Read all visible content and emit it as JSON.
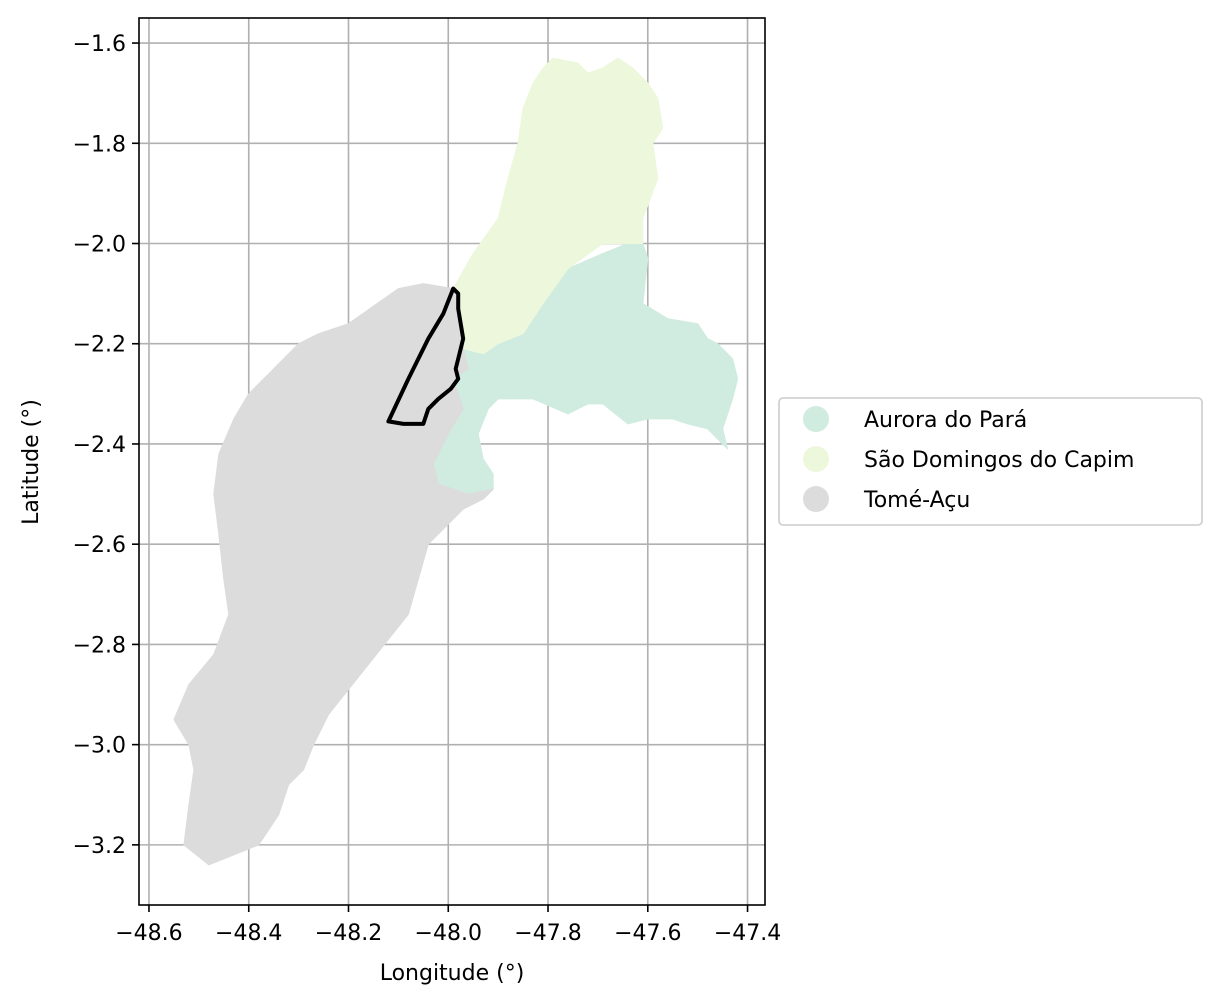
{
  "chart_data": {
    "type": "map",
    "xlabel": "Longitude (°)",
    "ylabel": "Latitude (°)",
    "xlim": [
      -48.62,
      -47.365
    ],
    "ylim": [
      -3.32,
      -1.55
    ],
    "xticks": [
      -48.6,
      -48.4,
      -48.2,
      -48.0,
      -47.8,
      -47.6,
      -47.4
    ],
    "xtick_labels": [
      "−48.6",
      "−48.4",
      "−48.2",
      "−48.0",
      "−47.8",
      "−47.6",
      "−47.4"
    ],
    "yticks": [
      -1.6,
      -1.8,
      -2.0,
      -2.2,
      -2.4,
      -2.6,
      -2.8,
      -3.0,
      -3.2
    ],
    "ytick_labels": [
      "−1.6",
      "−1.8",
      "−2.0",
      "−2.2",
      "−2.4",
      "−2.6",
      "−2.8",
      "−3.0",
      "−3.2"
    ],
    "grid": true,
    "legend_position": "right",
    "regions": [
      {
        "name": "Aurora do Pará",
        "color": "#d0ebe0",
        "polygon": [
          [
            -47.64,
            -2.0
          ],
          [
            -47.61,
            -2.0
          ],
          [
            -47.6,
            -2.03
          ],
          [
            -47.61,
            -2.12
          ],
          [
            -47.56,
            -2.15
          ],
          [
            -47.5,
            -2.16
          ],
          [
            -47.48,
            -2.19
          ],
          [
            -47.46,
            -2.2
          ],
          [
            -47.43,
            -2.23
          ],
          [
            -47.42,
            -2.27
          ],
          [
            -47.43,
            -2.31
          ],
          [
            -47.44,
            -2.34
          ],
          [
            -47.45,
            -2.37
          ],
          [
            -47.44,
            -2.41
          ],
          [
            -47.46,
            -2.39
          ],
          [
            -47.48,
            -2.37
          ],
          [
            -47.52,
            -2.36
          ],
          [
            -47.55,
            -2.35
          ],
          [
            -47.6,
            -2.35
          ],
          [
            -47.64,
            -2.36
          ],
          [
            -47.69,
            -2.32
          ],
          [
            -47.72,
            -2.32
          ],
          [
            -47.76,
            -2.34
          ],
          [
            -47.83,
            -2.31
          ],
          [
            -47.9,
            -2.31
          ],
          [
            -47.92,
            -2.33
          ],
          [
            -47.94,
            -2.38
          ],
          [
            -47.93,
            -2.43
          ],
          [
            -47.91,
            -2.46
          ],
          [
            -47.91,
            -2.49
          ],
          [
            -47.93,
            -2.51
          ],
          [
            -47.96,
            -2.5
          ],
          [
            -48.02,
            -2.48
          ],
          [
            -48.03,
            -2.44
          ],
          [
            -48.0,
            -2.38
          ],
          [
            -47.97,
            -2.33
          ],
          [
            -47.99,
            -2.27
          ],
          [
            -47.96,
            -2.25
          ],
          [
            -47.97,
            -2.21
          ],
          [
            -47.93,
            -2.22
          ],
          [
            -47.9,
            -2.2
          ],
          [
            -47.85,
            -2.18
          ],
          [
            -47.81,
            -2.12
          ],
          [
            -47.76,
            -2.05
          ],
          [
            -47.69,
            -2.02
          ]
        ]
      },
      {
        "name": "São Domingos do Capim",
        "color": "#ecf7dc",
        "polygon": [
          [
            -47.81,
            -1.65
          ],
          [
            -47.79,
            -1.63
          ],
          [
            -47.74,
            -1.64
          ],
          [
            -47.72,
            -1.66
          ],
          [
            -47.69,
            -1.65
          ],
          [
            -47.66,
            -1.63
          ],
          [
            -47.63,
            -1.65
          ],
          [
            -47.6,
            -1.68
          ],
          [
            -47.58,
            -1.71
          ],
          [
            -47.57,
            -1.77
          ],
          [
            -47.59,
            -1.8
          ],
          [
            -47.58,
            -1.87
          ],
          [
            -47.61,
            -1.95
          ],
          [
            -47.61,
            -2.0
          ],
          [
            -47.69,
            -2.0
          ],
          [
            -47.76,
            -2.05
          ],
          [
            -47.81,
            -2.12
          ],
          [
            -47.85,
            -2.18
          ],
          [
            -47.9,
            -2.2
          ],
          [
            -47.93,
            -2.22
          ],
          [
            -47.97,
            -2.21
          ],
          [
            -47.97,
            -2.17
          ],
          [
            -47.98,
            -2.12
          ],
          [
            -47.99,
            -2.09
          ],
          [
            -47.95,
            -2.02
          ],
          [
            -47.9,
            -1.95
          ],
          [
            -47.88,
            -1.87
          ],
          [
            -47.86,
            -1.8
          ],
          [
            -47.85,
            -1.73
          ],
          [
            -47.83,
            -1.68
          ]
        ]
      },
      {
        "name": "Tomé-Açu",
        "color": "#dcdcdc",
        "polygon": [
          [
            -47.99,
            -2.09
          ],
          [
            -48.05,
            -2.08
          ],
          [
            -48.1,
            -2.09
          ],
          [
            -48.2,
            -2.16
          ],
          [
            -48.26,
            -2.18
          ],
          [
            -48.3,
            -2.2
          ],
          [
            -48.36,
            -2.26
          ],
          [
            -48.4,
            -2.3
          ],
          [
            -48.43,
            -2.35
          ],
          [
            -48.46,
            -2.42
          ],
          [
            -48.47,
            -2.5
          ],
          [
            -48.46,
            -2.58
          ],
          [
            -48.45,
            -2.67
          ],
          [
            -48.44,
            -2.74
          ],
          [
            -48.47,
            -2.82
          ],
          [
            -48.52,
            -2.88
          ],
          [
            -48.55,
            -2.95
          ],
          [
            -48.52,
            -3.0
          ],
          [
            -48.51,
            -3.05
          ],
          [
            -48.52,
            -3.12
          ],
          [
            -48.53,
            -3.2
          ],
          [
            -48.48,
            -3.24
          ],
          [
            -48.43,
            -3.22
          ],
          [
            -48.38,
            -3.2
          ],
          [
            -48.34,
            -3.14
          ],
          [
            -48.32,
            -3.08
          ],
          [
            -48.29,
            -3.05
          ],
          [
            -48.27,
            -3.0
          ],
          [
            -48.24,
            -2.94
          ],
          [
            -48.2,
            -2.89
          ],
          [
            -48.16,
            -2.84
          ],
          [
            -48.12,
            -2.79
          ],
          [
            -48.08,
            -2.74
          ],
          [
            -48.06,
            -2.67
          ],
          [
            -48.04,
            -2.6
          ],
          [
            -48.0,
            -2.56
          ],
          [
            -47.97,
            -2.53
          ],
          [
            -47.93,
            -2.51
          ],
          [
            -47.91,
            -2.49
          ],
          [
            -47.96,
            -2.5
          ],
          [
            -48.02,
            -2.48
          ],
          [
            -48.03,
            -2.44
          ],
          [
            -48.0,
            -2.38
          ],
          [
            -47.97,
            -2.33
          ],
          [
            -47.99,
            -2.27
          ],
          [
            -47.96,
            -2.25
          ],
          [
            -47.97,
            -2.21
          ],
          [
            -47.97,
            -2.17
          ],
          [
            -47.98,
            -2.12
          ]
        ]
      }
    ],
    "outline": {
      "color": "#000000",
      "polygon": [
        [
          -47.99,
          -2.09
        ],
        [
          -47.98,
          -2.1
        ],
        [
          -47.98,
          -2.13
        ],
        [
          -47.975,
          -2.16
        ],
        [
          -47.97,
          -2.19
        ],
        [
          -47.975,
          -2.21
        ],
        [
          -47.98,
          -2.23
        ],
        [
          -47.985,
          -2.25
        ],
        [
          -47.98,
          -2.27
        ],
        [
          -47.995,
          -2.29
        ],
        [
          -48.02,
          -2.31
        ],
        [
          -48.04,
          -2.33
        ],
        [
          -48.05,
          -2.36
        ],
        [
          -48.09,
          -2.36
        ],
        [
          -48.12,
          -2.355
        ],
        [
          -48.08,
          -2.27
        ],
        [
          -48.04,
          -2.19
        ],
        [
          -48.01,
          -2.14
        ]
      ]
    }
  }
}
